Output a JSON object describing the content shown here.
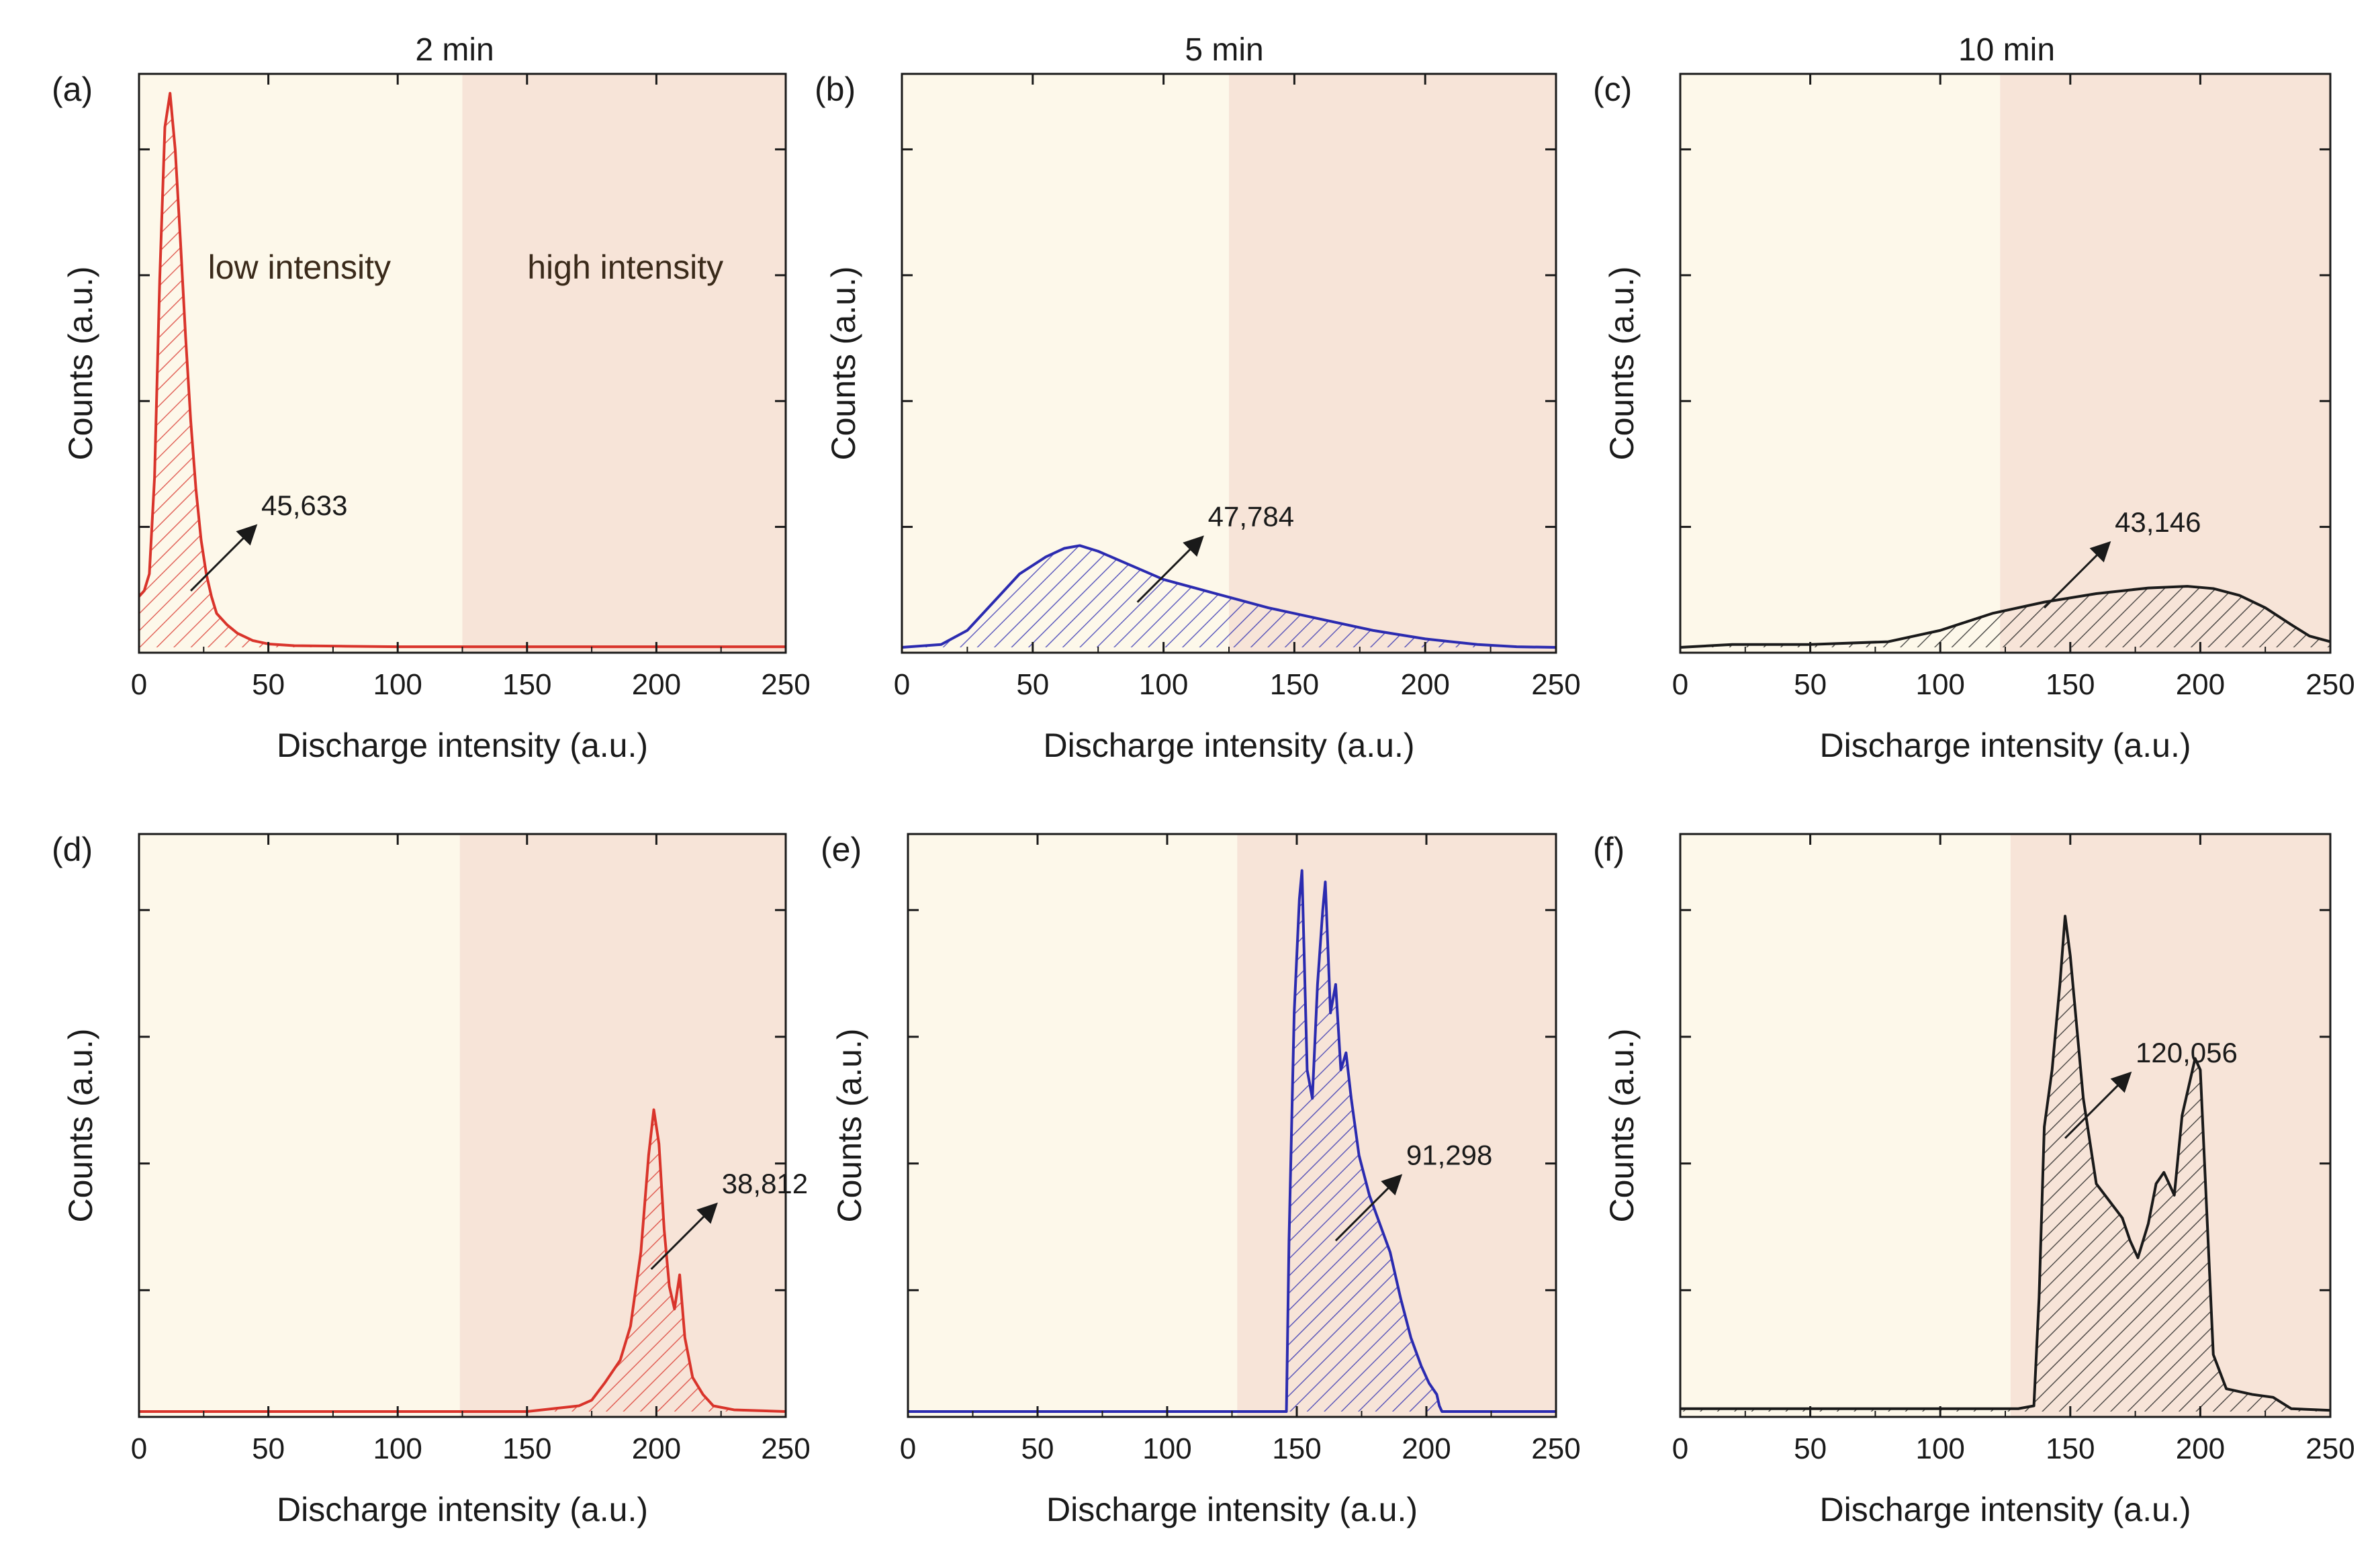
{
  "figure": {
    "column_titles": [
      "2 min",
      "5 min",
      "10 min"
    ]
  },
  "colors": {
    "low_region": "#fdf8ea",
    "high_region": "#f7e4d8",
    "red": "#d9342b",
    "blue": "#2b2bb0",
    "black": "#1a1a1a"
  },
  "chart_data": [
    {
      "id": "a",
      "panel_label": "(a)",
      "type": "area",
      "color": "red",
      "xlim": [
        0,
        250
      ],
      "ylim": [
        0,
        1
      ],
      "xticks": [
        0,
        50,
        100,
        150,
        200,
        250
      ],
      "xlabel": "Discharge intensity (a.u.)",
      "ylabel": "Counts (a.u.)",
      "region_split": 125,
      "region_labels": [
        "low intensity",
        "high intensity"
      ],
      "annotation": {
        "text": "45,633",
        "at": [
          20,
          0.1
        ]
      },
      "x": [
        0,
        2,
        4,
        6,
        8,
        10,
        12,
        14,
        16,
        18,
        20,
        22,
        24,
        26,
        28,
        30,
        34,
        38,
        44,
        50,
        60,
        80,
        100,
        150,
        200,
        250
      ],
      "y": [
        0.09,
        0.1,
        0.13,
        0.3,
        0.65,
        0.92,
        0.98,
        0.88,
        0.72,
        0.55,
        0.4,
        0.28,
        0.19,
        0.13,
        0.09,
        0.06,
        0.04,
        0.025,
        0.012,
        0.006,
        0.003,
        0.002,
        0.001,
        0.001,
        0.001,
        0.001
      ]
    },
    {
      "id": "b",
      "panel_label": "(b)",
      "type": "area",
      "color": "blue",
      "xlim": [
        0,
        250
      ],
      "ylim": [
        0,
        1
      ],
      "xticks": [
        0,
        50,
        100,
        150,
        200,
        250
      ],
      "xlabel": "Discharge intensity (a.u.)",
      "ylabel": "Counts (a.u.)",
      "region_split": 125,
      "region_labels": [],
      "annotation": {
        "text": "47,784",
        "at": [
          90,
          0.08
        ]
      },
      "x": [
        0,
        15,
        25,
        35,
        45,
        55,
        62,
        68,
        75,
        85,
        100,
        120,
        140,
        160,
        180,
        200,
        220,
        235,
        250
      ],
      "y": [
        0.0,
        0.005,
        0.03,
        0.08,
        0.13,
        0.16,
        0.175,
        0.18,
        0.17,
        0.15,
        0.12,
        0.095,
        0.07,
        0.05,
        0.03,
        0.015,
        0.005,
        0.001,
        0.0
      ]
    },
    {
      "id": "c",
      "panel_label": "(c)",
      "type": "area",
      "color": "black",
      "xlim": [
        0,
        250
      ],
      "ylim": [
        0,
        1
      ],
      "xticks": [
        0,
        50,
        100,
        150,
        200,
        250
      ],
      "xlabel": "Discharge intensity (a.u.)",
      "ylabel": "Counts (a.u.)",
      "region_split": 123,
      "region_labels": [],
      "annotation": {
        "text": "43,146",
        "at": [
          140,
          0.07
        ]
      },
      "x": [
        0,
        20,
        50,
        80,
        100,
        120,
        140,
        160,
        180,
        195,
        205,
        215,
        225,
        235,
        242,
        250
      ],
      "y": [
        0.0,
        0.005,
        0.005,
        0.01,
        0.03,
        0.06,
        0.08,
        0.095,
        0.105,
        0.108,
        0.104,
        0.092,
        0.07,
        0.04,
        0.02,
        0.01
      ]
    },
    {
      "id": "d",
      "panel_label": "(d)",
      "type": "area",
      "color": "red",
      "xlim": [
        0,
        250
      ],
      "ylim": [
        0,
        1
      ],
      "xticks": [
        0,
        50,
        100,
        150,
        200,
        250
      ],
      "xlabel": "Discharge intensity (a.u.)",
      "ylabel": "Counts (a.u.)",
      "region_split": 124,
      "region_labels": [],
      "annotation": {
        "text": "38,812",
        "at": [
          198,
          0.25
        ]
      },
      "x": [
        0,
        150,
        160,
        170,
        175,
        180,
        183,
        186,
        190,
        194,
        197,
        199,
        201,
        203,
        205,
        207,
        209,
        211,
        214,
        218,
        222,
        230,
        250
      ],
      "y": [
        0.0,
        0.0,
        0.005,
        0.01,
        0.02,
        0.05,
        0.07,
        0.09,
        0.15,
        0.28,
        0.45,
        0.53,
        0.47,
        0.32,
        0.22,
        0.18,
        0.24,
        0.13,
        0.06,
        0.03,
        0.01,
        0.003,
        0.0
      ]
    },
    {
      "id": "e",
      "panel_label": "(e)",
      "type": "area",
      "color": "blue",
      "xlim": [
        0,
        250
      ],
      "ylim": [
        0,
        1
      ],
      "xticks": [
        0,
        50,
        100,
        150,
        200,
        250
      ],
      "xlabel": "Discharge intensity (a.u.)",
      "ylabel": "Counts (a.u.)",
      "region_split": 127,
      "region_labels": [],
      "annotation": {
        "text": "91,298",
        "at": [
          165,
          0.3
        ]
      },
      "x": [
        0,
        146,
        147,
        149,
        151,
        152,
        154,
        156,
        158,
        160,
        161,
        163,
        165,
        167,
        169,
        171,
        174,
        178,
        182,
        186,
        190,
        194,
        198,
        201,
        204,
        205,
        206,
        250
      ],
      "y": [
        0.0,
        0.0,
        0.3,
        0.7,
        0.9,
        0.95,
        0.6,
        0.55,
        0.75,
        0.88,
        0.93,
        0.7,
        0.75,
        0.6,
        0.63,
        0.55,
        0.45,
        0.38,
        0.33,
        0.28,
        0.2,
        0.13,
        0.08,
        0.05,
        0.03,
        0.01,
        0.0,
        0.0
      ]
    },
    {
      "id": "f",
      "panel_label": "(f)",
      "type": "area",
      "color": "black",
      "xlim": [
        0,
        250
      ],
      "ylim": [
        0,
        1
      ],
      "xticks": [
        0,
        50,
        100,
        150,
        200,
        250
      ],
      "xlabel": "Discharge intensity (a.u.)",
      "ylabel": "Counts (a.u.)",
      "region_split": 127,
      "region_labels": [],
      "annotation": {
        "text": "120,056",
        "at": [
          148,
          0.48
        ]
      },
      "x": [
        0,
        130,
        136,
        138,
        140,
        143,
        146,
        148,
        150,
        152,
        155,
        160,
        165,
        170,
        173,
        176,
        180,
        183,
        186,
        190,
        193,
        196,
        198,
        200,
        202,
        205,
        210,
        220,
        228,
        235,
        250
      ],
      "y": [
        0.005,
        0.005,
        0.01,
        0.2,
        0.5,
        0.6,
        0.75,
        0.87,
        0.8,
        0.7,
        0.55,
        0.4,
        0.37,
        0.34,
        0.3,
        0.27,
        0.33,
        0.4,
        0.42,
        0.38,
        0.52,
        0.58,
        0.62,
        0.6,
        0.4,
        0.1,
        0.04,
        0.03,
        0.025,
        0.005,
        0.002
      ]
    }
  ]
}
